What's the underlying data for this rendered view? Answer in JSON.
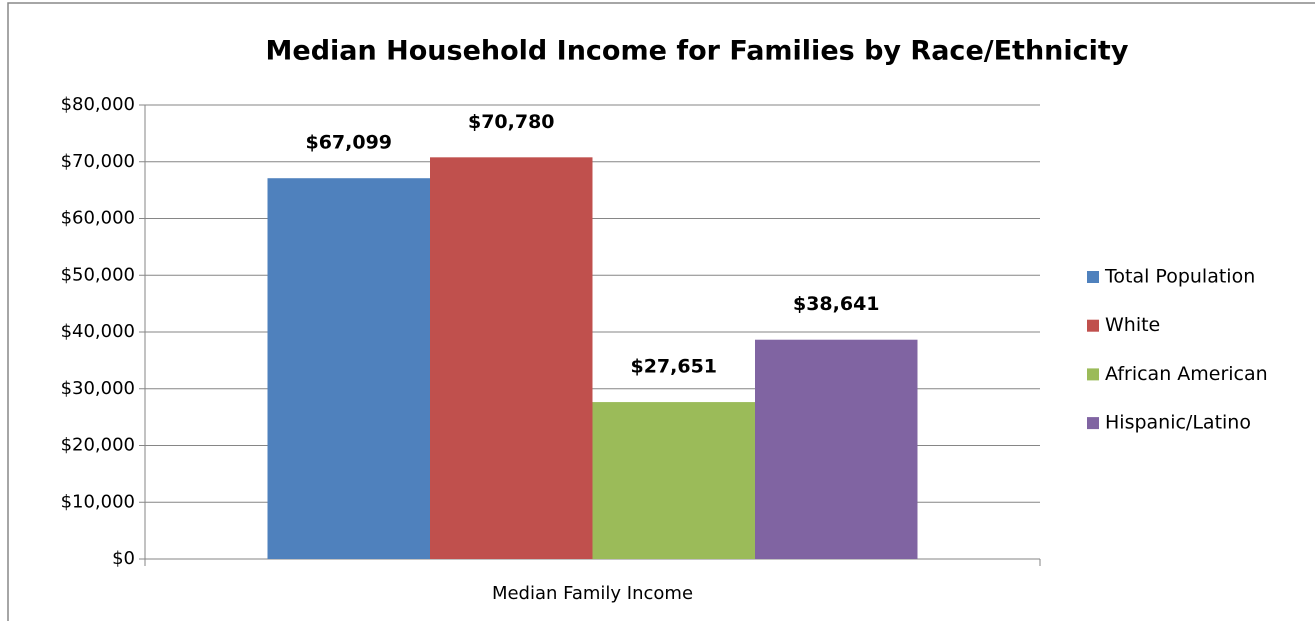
{
  "chart_data": {
    "type": "bar",
    "title": "Median Household Income for Families by Race/Ethnicity",
    "categories": [
      "Median Family Income"
    ],
    "series": [
      {
        "name": "Total Population",
        "color": "#4f81bd",
        "values": [
          67099
        ],
        "value_labels": [
          "$67,099"
        ]
      },
      {
        "name": "White",
        "color": "#c0504d",
        "values": [
          70780
        ],
        "value_labels": [
          "$70,780"
        ]
      },
      {
        "name": "African American",
        "color": "#9bbb59",
        "values": [
          27651
        ],
        "value_labels": [
          "$27,651"
        ]
      },
      {
        "name": "Hispanic/Latino",
        "color": "#8064a2",
        "values": [
          38641
        ],
        "value_labels": [
          "$38,641"
        ]
      }
    ],
    "ylim": [
      0,
      80000
    ],
    "yticks": [
      {
        "value": 0,
        "label": "$0"
      },
      {
        "value": 10000,
        "label": "$10,000"
      },
      {
        "value": 20000,
        "label": "$20,000"
      },
      {
        "value": 30000,
        "label": "$30,000"
      },
      {
        "value": 40000,
        "label": "$40,000"
      },
      {
        "value": 50000,
        "label": "$50,000"
      },
      {
        "value": 60000,
        "label": "$60,000"
      },
      {
        "value": 70000,
        "label": "$70,000"
      },
      {
        "value": 80000,
        "label": "$80,000"
      }
    ],
    "grid": true,
    "legend": "right"
  }
}
